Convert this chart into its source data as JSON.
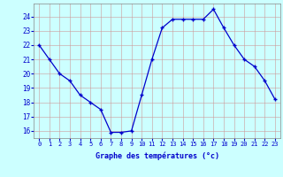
{
  "hours": [
    0,
    1,
    2,
    3,
    4,
    5,
    6,
    7,
    8,
    9,
    10,
    11,
    12,
    13,
    14,
    15,
    16,
    17,
    18,
    19,
    20,
    21,
    22,
    23
  ],
  "temps": [
    22.0,
    21.0,
    20.0,
    19.5,
    18.5,
    18.0,
    17.5,
    15.9,
    15.9,
    16.0,
    18.5,
    21.0,
    23.2,
    23.8,
    23.8,
    23.8,
    23.8,
    24.5,
    23.2,
    22.0,
    21.0,
    20.5,
    19.5,
    18.2
  ],
  "ylim": [
    15.5,
    24.9
  ],
  "yticks": [
    16,
    17,
    18,
    19,
    20,
    21,
    22,
    23,
    24
  ],
  "xtick_labels": [
    "0",
    "1",
    "2",
    "3",
    "4",
    "5",
    "6",
    "7",
    "8",
    "9",
    "1011",
    "1213",
    "1415",
    "1617",
    "1819",
    "2021",
    "2223"
  ],
  "xlabel": "Graphe des températures (°c)",
  "line_color": "#0000cc",
  "marker": "+",
  "bg_color": "#ccffff",
  "grid_color": "#cc9999",
  "axis_label_color": "#0000cc",
  "tick_label_color": "#0000cc"
}
